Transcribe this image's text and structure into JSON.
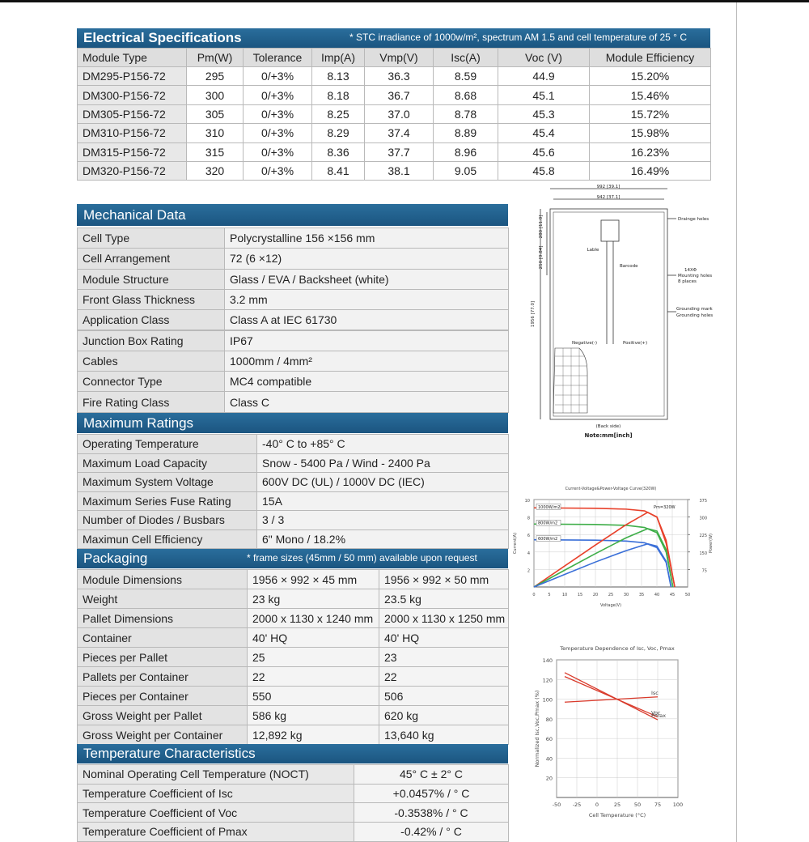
{
  "electrical": {
    "title": "Electrical Specifications",
    "note": "* STC irradiance of 1000w/m², spectrum AM 1.5 and cell temperature of 25 ° C",
    "header": [
      "Module Type",
      "Pm(W)",
      "Tolerance",
      "Imp(A)",
      "Vmp(V)",
      "Isc(A)",
      "Voc (V)",
      "Module Efficiency"
    ],
    "rows": [
      [
        "DM295-P156-72",
        "295",
        "0/+3%",
        "8.13",
        "36.3",
        "8.59",
        "44.9",
        "15.20%"
      ],
      [
        "DM300-P156-72",
        "300",
        "0/+3%",
        "8.18",
        "36.7",
        "8.68",
        "45.1",
        "15.46%"
      ],
      [
        "DM305-P156-72",
        "305",
        "0/+3%",
        "8.25",
        "37.0",
        "8.78",
        "45.3",
        "15.72%"
      ],
      [
        "DM310-P156-72",
        "310",
        "0/+3%",
        "8.29",
        "37.4",
        "8.89",
        "45.4",
        "15.98%"
      ],
      [
        "DM315-P156-72",
        "315",
        "0/+3%",
        "8.36",
        "37.7",
        "8.96",
        "45.6",
        "16.23%"
      ],
      [
        "DM320-P156-72",
        "320",
        "0/+3%",
        "8.41",
        "38.1",
        "9.05",
        "45.8",
        "16.49%"
      ]
    ]
  },
  "mechanical": {
    "title": "Mechanical Data",
    "rows": [
      [
        "Cell Type",
        "Polycrystalline 156 ×156 mm"
      ],
      [
        "Cell Arrangement",
        "72 (6 ×12)"
      ],
      [
        "Module Structure",
        "Glass / EVA / Backsheet (white)"
      ],
      [
        "Front Glass Thickness",
        "3.2 mm"
      ],
      [
        "Application Class",
        "Class A at IEC 61730"
      ],
      [
        "Junction Box Rating",
        "IP67"
      ],
      [
        "Cables",
        "1000mm / 4mm²"
      ],
      [
        "Connector Type",
        "MC4 compatible"
      ],
      [
        "Fire Rating Class",
        "Class C"
      ]
    ]
  },
  "ratings": {
    "title": "Maximum Ratings",
    "rows": [
      [
        "Operating Temperature",
        "-40° C to +85° C"
      ],
      [
        "Maximum Load Capacity",
        "Snow - 5400 Pa / Wind - 2400 Pa"
      ],
      [
        "Maximum System Voltage",
        "600V DC (UL) / 1000V DC (IEC)"
      ],
      [
        "Maximum Series Fuse Rating",
        "15A"
      ],
      [
        "Number of Diodes / Busbars",
        "3 / 3"
      ],
      [
        "Maximun Cell Efficiency",
        "6\" Mono / 18.2%"
      ]
    ]
  },
  "packaging": {
    "title": "Packaging",
    "note": "* frame sizes (45mm / 50 mm) available upon request",
    "rows": [
      [
        "Module Dimensions",
        "1956 × 992 × 45 mm",
        "1956 × 992 × 50 mm"
      ],
      [
        "Weight",
        "23 kg",
        "23.5 kg"
      ],
      [
        "Pallet Dimensions",
        "2000 x 1130 x 1240 mm",
        "2000 x 1130 x 1250 mm"
      ],
      [
        "Container",
        "40' HQ",
        "40' HQ"
      ],
      [
        "Pieces per Pallet",
        "25",
        "23"
      ],
      [
        "Pallets per Container",
        "22",
        "22"
      ],
      [
        "Pieces per Container",
        "550",
        "506"
      ],
      [
        "Gross Weight per Pallet",
        "586 kg",
        "620 kg"
      ],
      [
        "Gross Weight per Container",
        "12,892 kg",
        "13,640 kg"
      ]
    ]
  },
  "temperature": {
    "title": "Temperature Characteristics",
    "rows": [
      [
        "Nominal Operating Cell  Temperature (NOCT)",
        "45° C ± 2° C"
      ],
      [
        "Temperature Coefficient of Isc",
        "+0.0457% / ° C"
      ],
      [
        "Temperature Coefficient of Voc",
        "-0.3538% / ° C"
      ],
      [
        "Temperature Coefficient of Pmax",
        "-0.42% / ° C"
      ]
    ]
  },
  "drawing": {
    "labels": [
      "992 [39.1]",
      "942 [37.1]",
      "Drainge holes",
      "Lable",
      "Barcode",
      "14XΦ",
      "Mounting holes",
      "8 places",
      "Grounding mark",
      "Grounding holes",
      "Negative(-)",
      "Positive(+)",
      "(Back side)",
      "Note:mm[inch]",
      "1956 [77.0]",
      "280 [11.0]",
      "250 [9.84]"
    ]
  },
  "iv_chart": {
    "type": "line",
    "title": "Current-Voltage&Power-Voltage Curve(320W)",
    "x_label": "Voltage(V)",
    "y_label": "Current(A)",
    "y2_label": "Power(W)",
    "annotation": "Pm=320W",
    "xlim": [
      0,
      50
    ],
    "xticks": [
      0,
      5,
      10,
      15,
      20,
      25,
      30,
      35,
      40,
      45,
      50
    ],
    "ylim": [
      0,
      10
    ],
    "yticks": [
      2,
      4,
      6,
      8,
      10
    ],
    "y2lim": [
      0,
      375
    ],
    "y2ticks": [
      75,
      150,
      225,
      300,
      375
    ],
    "series": [
      {
        "name": "1000W/m2",
        "color": "#e8412b",
        "x": [
          0,
          20,
          30,
          36,
          40,
          43,
          45.8
        ],
        "values": [
          9.05,
          9.0,
          8.9,
          8.7,
          8.0,
          5,
          0
        ]
      },
      {
        "name": "800W/m2",
        "color": "#3fae49",
        "x": [
          0,
          20,
          30,
          36,
          40,
          43,
          45.2
        ],
        "values": [
          7.2,
          7.15,
          7.05,
          6.8,
          6.2,
          4,
          0
        ]
      },
      {
        "name": "600W/m2",
        "color": "#3a6fd8",
        "x": [
          0,
          20,
          30,
          36,
          40,
          43,
          44.6
        ],
        "values": [
          5.4,
          5.35,
          5.25,
          5.05,
          4.5,
          2.8,
          0
        ]
      },
      {
        "axis": "y2",
        "color": "#e8412b",
        "x": [
          0,
          10,
          20,
          30,
          37,
          40,
          43,
          45.8
        ],
        "values": [
          0,
          90,
          180,
          267,
          320,
          300,
          200,
          0
        ]
      },
      {
        "axis": "y2",
        "color": "#3fae49",
        "x": [
          0,
          10,
          20,
          30,
          37,
          40,
          43,
          45.2
        ],
        "values": [
          0,
          72,
          143,
          211,
          250,
          240,
          160,
          0
        ]
      },
      {
        "axis": "y2",
        "color": "#3a6fd8",
        "x": [
          0,
          10,
          20,
          30,
          37,
          40,
          43,
          44.6
        ],
        "values": [
          0,
          54,
          107,
          156,
          185,
          175,
          110,
          0
        ]
      }
    ]
  },
  "temp_chart": {
    "type": "line",
    "title": "Temperature Dependence of Isc, Voc, Pmax",
    "x_label": "Cell Temperature (°C)",
    "y_label": "Normalized Isc,Voc,Pmax (%)",
    "xlim": [
      -50,
      100
    ],
    "xticks": [
      -50,
      -25,
      0,
      25,
      50,
      75,
      100
    ],
    "ylim": [
      0,
      140
    ],
    "yticks": [
      20,
      40,
      60,
      80,
      100,
      120,
      140
    ],
    "series": [
      {
        "name": "Isc",
        "color": "#d93a2b",
        "x": [
          -40,
          75
        ],
        "values": [
          97,
          102.3
        ]
      },
      {
        "name": "Voc",
        "color": "#d93a2b",
        "x": [
          -40,
          75
        ],
        "values": [
          123,
          82
        ]
      },
      {
        "name": "Pmax",
        "color": "#d93a2b",
        "x": [
          -40,
          75
        ],
        "values": [
          127,
          79
        ]
      }
    ]
  }
}
